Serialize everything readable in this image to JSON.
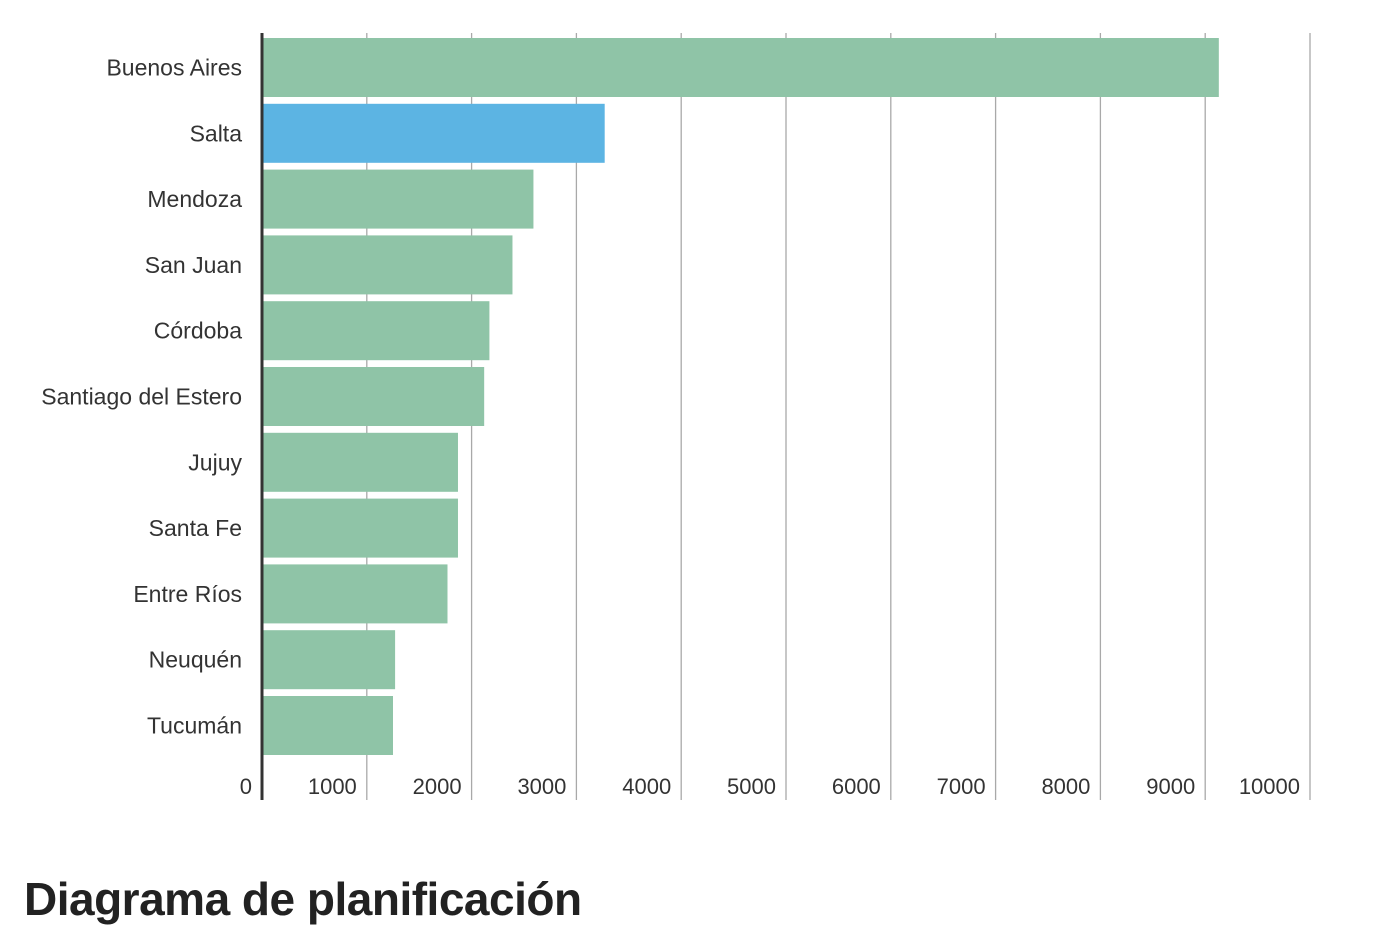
{
  "chart_data": {
    "type": "bar",
    "orientation": "horizontal",
    "categories": [
      "Buenos Aires",
      "Salta",
      "Mendoza",
      "San Juan",
      "Córdoba",
      "Santiago del Estero",
      "Jujuy",
      "Santa Fe",
      "Entre Ríos",
      "Neuquén",
      "Tucumán"
    ],
    "values": [
      9130,
      3270,
      2590,
      2390,
      2170,
      2120,
      1870,
      1870,
      1770,
      1270,
      1250
    ],
    "highlight_category": "Salta",
    "colors": {
      "bar": "#8fc4a7",
      "highlight": "#5cb4e3",
      "grid": "#a9a9a9",
      "axis": "#333333"
    },
    "xlim": [
      0,
      10000
    ],
    "x_ticks": [
      "0",
      "1000",
      "2000",
      "3000",
      "4000",
      "5000",
      "6000",
      "7000",
      "8000",
      "9000",
      "10000"
    ],
    "grid": true,
    "title": "",
    "xlabel": "",
    "ylabel": ""
  },
  "page": {
    "heading": "Diagrama de planificación"
  }
}
